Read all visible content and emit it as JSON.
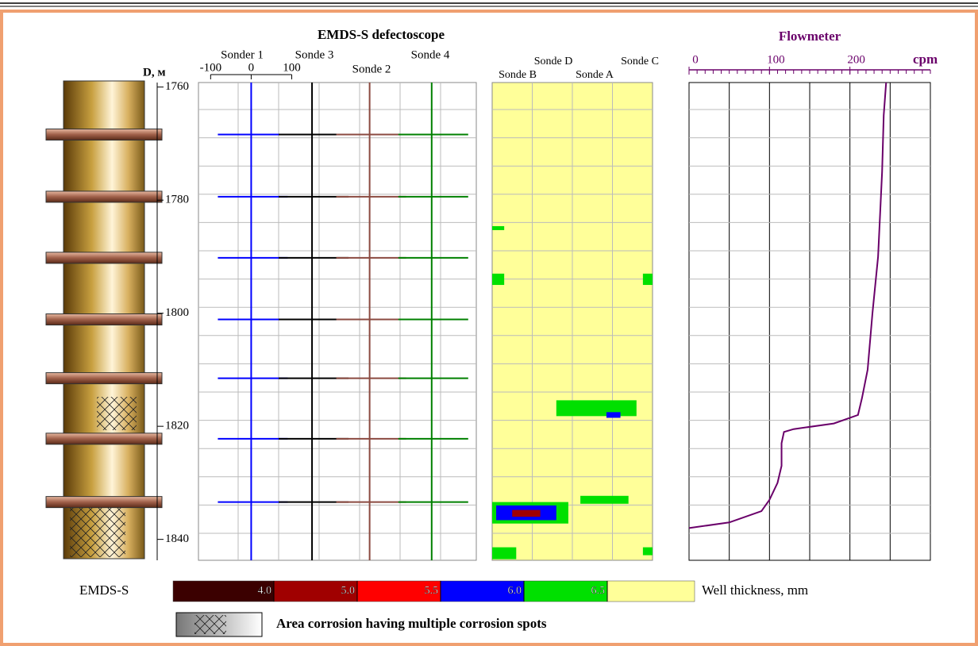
{
  "chart_data": [
    {
      "type": "sonde-log",
      "title": "EMDS-S defectoscope",
      "ylabel": "D, м",
      "ylim": [
        1759.2,
        1843.7
      ],
      "yticks": [
        1760,
        1780,
        1800,
        1820,
        1840
      ],
      "xlim": [
        -130,
        555
      ],
      "xticks": [
        -100,
        0,
        100
      ],
      "collars": [
        1768.4,
        1779.4,
        1790.2,
        1801.1,
        1811.5,
        1822.2,
        1833.4
      ],
      "series": [
        {
          "name": "Sonder 1",
          "color": "#0000ff",
          "baseline": 0
        },
        {
          "name": "Sonde 3",
          "color": "#000000",
          "baseline": 150
        },
        {
          "name": "Sonde 2",
          "color": "#8b4a40",
          "baseline": 292
        },
        {
          "name": "Sonde 4",
          "color": "#008000",
          "baseline": 445
        }
      ]
    },
    {
      "type": "thickness-map",
      "lanes": [
        "Sonde B",
        "Sonde D",
        "Sonde A",
        "Sonde C"
      ],
      "spots": [
        {
          "x": [
            1.6,
            3.6
          ],
          "depth": [
            1815.4,
            1818.2
          ],
          "value": 6.2
        },
        {
          "x": [
            2.85,
            3.2
          ],
          "depth": [
            1817.5,
            1818.5
          ],
          "value": 5.8
        },
        {
          "x": [
            0,
            1.9
          ],
          "depth": [
            1833.4,
            1837.2
          ],
          "value": 6.2
        },
        {
          "x": [
            0.1,
            1.6
          ],
          "depth": [
            1834,
            1836.6
          ],
          "value": 5.8
        },
        {
          "x": [
            0.5,
            1.2
          ],
          "depth": [
            1834.8,
            1836
          ],
          "value": 4.5
        },
        {
          "x": [
            2.2,
            3.4
          ],
          "depth": [
            1832.3,
            1833.7
          ],
          "value": 6.2
        },
        {
          "x": [
            0,
            0.3
          ],
          "depth": [
            1784.6,
            1785.3
          ],
          "value": 6.2
        },
        {
          "x": [
            0,
            0.3
          ],
          "depth": [
            1793,
            1795
          ],
          "value": 6.2
        },
        {
          "x": [
            3.76,
            4
          ],
          "depth": [
            1793,
            1795
          ],
          "value": 6.2
        },
        {
          "x": [
            0,
            0.6
          ],
          "depth": [
            1841.4,
            1843.5
          ],
          "value": 6.2
        },
        {
          "x": [
            3.76,
            4
          ],
          "depth": [
            1841.4,
            1842.8
          ],
          "value": 6.2
        }
      ]
    },
    {
      "type": "line",
      "title": "Flowmeter",
      "xlabel": "cpm",
      "color": "#6a006a",
      "xlim": [
        0,
        300
      ],
      "xticks": [
        0,
        100,
        200
      ],
      "depth": [
        1759.2,
        1765,
        1775,
        1790,
        1800,
        1810,
        1815,
        1818,
        1819.5,
        1820.5,
        1821,
        1823,
        1827,
        1830,
        1833,
        1835,
        1837,
        1838
      ],
      "values": [
        245,
        242,
        240,
        235,
        228,
        222,
        215,
        210,
        180,
        130,
        118,
        115,
        115,
        110,
        100,
        90,
        50,
        0
      ]
    }
  ],
  "legend": {
    "label": "EMDS-S",
    "title": "Well thickness, mm",
    "ticks": [
      {
        "value": 4,
        "label": "4.0"
      },
      {
        "value": 5,
        "label": "5.0"
      },
      5.5,
      {
        "value": 6,
        "label": "6.0"
      },
      6.5
    ],
    "colors": [
      "#3b0000",
      "#a00000",
      "#ff0000",
      "#0000ff",
      "#00e000",
      "#ffff99"
    ],
    "corrosion": "Area corrosion having multiple corrosion spots"
  }
}
